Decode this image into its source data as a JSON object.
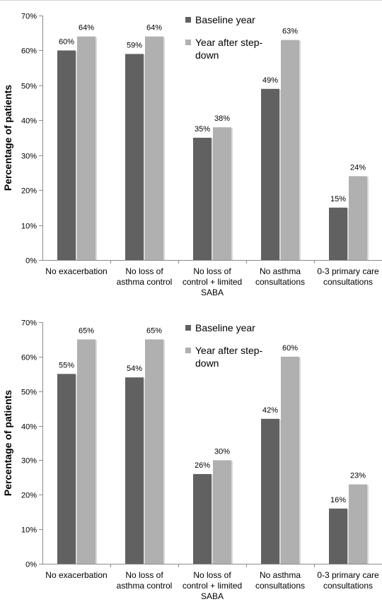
{
  "colors": {
    "baseline": "#616161",
    "after": "#b0b0b0",
    "axis": "#8c8c8c",
    "text": "#000000"
  },
  "chart_data": [
    {
      "type": "bar",
      "ylabel": "Percentage of patients",
      "ylim": [
        0,
        70
      ],
      "ytick_labels": [
        "0%",
        "10%",
        "20%",
        "30%",
        "40%",
        "50%",
        "60%",
        "70%"
      ],
      "grid": false,
      "legend_position": "top-right",
      "categories": [
        [
          "No exacerbation"
        ],
        [
          "No loss of",
          "asthma control"
        ],
        [
          "No loss of",
          "control + limited",
          "SABA"
        ],
        [
          "No asthma",
          "consultations"
        ],
        [
          "0-3 primary care",
          "consultations"
        ]
      ],
      "series": [
        {
          "name": "Baseline year",
          "values": [
            60,
            59,
            35,
            49,
            15
          ],
          "labels": [
            "60%",
            "59%",
            "35%",
            "49%",
            "15%"
          ]
        },
        {
          "name": "Year after step-down",
          "name_lines": [
            "Year after step-",
            "down"
          ],
          "values": [
            64,
            64,
            38,
            63,
            24
          ],
          "labels": [
            "64%",
            "64%",
            "38%",
            "63%",
            "24%"
          ]
        }
      ]
    },
    {
      "type": "bar",
      "ylabel": "Percentage of patients",
      "ylim": [
        0,
        70
      ],
      "ytick_labels": [
        "0%",
        "10%",
        "20%",
        "30%",
        "40%",
        "50%",
        "60%",
        "70%"
      ],
      "grid": false,
      "legend_position": "top-right",
      "categories": [
        [
          "No exacerbation"
        ],
        [
          "No loss of",
          "asthma control"
        ],
        [
          "No loss of",
          "control + limited",
          "SABA"
        ],
        [
          "No asthma",
          "consultations"
        ],
        [
          "0-3 primary care",
          "consultations"
        ]
      ],
      "series": [
        {
          "name": "Baseline year",
          "values": [
            55,
            54,
            26,
            42,
            16
          ],
          "labels": [
            "55%",
            "54%",
            "26%",
            "42%",
            "16%"
          ]
        },
        {
          "name": "Year after step-down",
          "name_lines": [
            "Year after step-",
            "down"
          ],
          "values": [
            65,
            65,
            30,
            60,
            23
          ],
          "labels": [
            "65%",
            "65%",
            "30%",
            "60%",
            "23%"
          ]
        }
      ]
    }
  ]
}
